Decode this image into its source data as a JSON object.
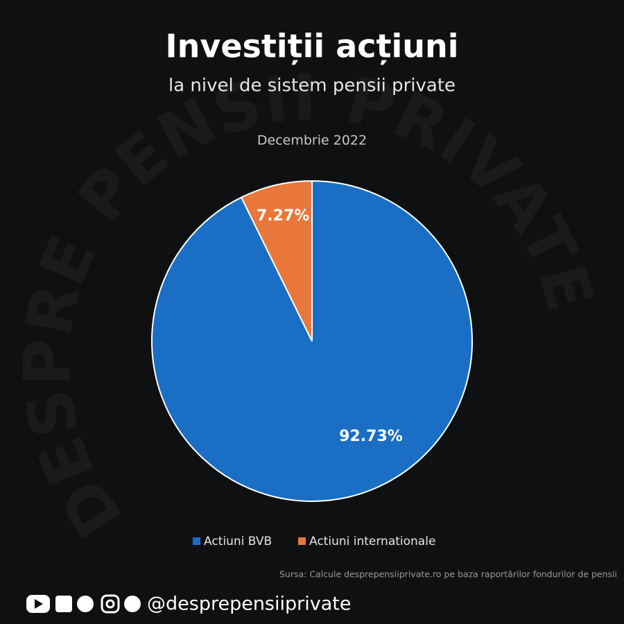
{
  "chart_data": {
    "type": "pie",
    "title": "Investiții acțiuni",
    "subtitle": "la nivel de sistem pensii private",
    "period": "Decembrie 2022",
    "categories": [
      "Actiuni BVB",
      "Actiuni internationale"
    ],
    "values": [
      92.73,
      7.27
    ],
    "value_labels": [
      "92.73%",
      "7.27%"
    ],
    "colors": [
      "#1a6fc4",
      "#e9773b"
    ],
    "source": "Sursa: Calcule desprepensiiprivate.ro pe baza raportărilor fondurilor de pensii",
    "watermark": "DESPRE PENSII PRIVATE",
    "handle": "@desprepensiiprivate"
  }
}
